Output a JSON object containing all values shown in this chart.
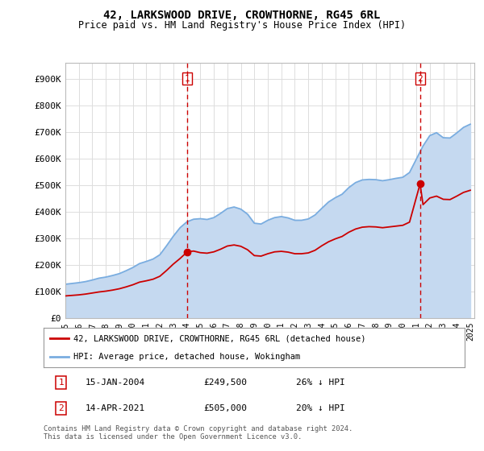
{
  "title": "42, LARKSWOOD DRIVE, CROWTHORNE, RG45 6RL",
  "subtitle": "Price paid vs. HM Land Registry's House Price Index (HPI)",
  "ylabel_ticks": [
    "£0",
    "£100K",
    "£200K",
    "£300K",
    "£400K",
    "£500K",
    "£600K",
    "£700K",
    "£800K",
    "£900K"
  ],
  "ytick_values": [
    0,
    100000,
    200000,
    300000,
    400000,
    500000,
    600000,
    700000,
    800000,
    900000
  ],
  "ylim": [
    0,
    960000
  ],
  "background_color": "#ffffff",
  "plot_bg_color": "#ffffff",
  "grid_color": "#dddddd",
  "sale1_date_num": 2004.04,
  "sale1_price": 249500,
  "sale1_label": "1",
  "sale2_date_num": 2021.28,
  "sale2_price": 505000,
  "sale2_label": "2",
  "legend_label1": "42, LARKSWOOD DRIVE, CROWTHORNE, RG45 6RL (detached house)",
  "legend_label2": "HPI: Average price, detached house, Wokingham",
  "footer": "Contains HM Land Registry data © Crown copyright and database right 2024.\nThis data is licensed under the Open Government Licence v3.0.",
  "line_color_sale": "#cc0000",
  "line_color_hpi": "#7aade0",
  "fill_color_hpi": "#c5d9f0",
  "marker_color_sale": "#cc0000",
  "vline_color": "#cc0000",
  "hpi_data_years": [
    1995,
    1995.5,
    1996,
    1996.5,
    1997,
    1997.5,
    1998,
    1998.5,
    1999,
    1999.5,
    2000,
    2000.5,
    2001,
    2001.5,
    2002,
    2002.5,
    2003,
    2003.5,
    2004,
    2004.5,
    2005,
    2005.5,
    2006,
    2006.5,
    2007,
    2007.5,
    2008,
    2008.5,
    2009,
    2009.5,
    2010,
    2010.5,
    2011,
    2011.5,
    2012,
    2012.5,
    2013,
    2013.5,
    2014,
    2014.5,
    2015,
    2015.5,
    2016,
    2016.5,
    2017,
    2017.5,
    2018,
    2018.5,
    2019,
    2019.5,
    2020,
    2020.5,
    2021,
    2021.5,
    2022,
    2022.5,
    2023,
    2023.5,
    2024,
    2024.5,
    2025
  ],
  "hpi_data_values": [
    127000,
    130000,
    133000,
    137000,
    143000,
    150000,
    154000,
    160000,
    167000,
    178000,
    190000,
    205000,
    213000,
    222000,
    238000,
    272000,
    308000,
    340000,
    362000,
    372000,
    374000,
    371000,
    378000,
    394000,
    412000,
    418000,
    410000,
    391000,
    357000,
    354000,
    368000,
    378000,
    382000,
    377000,
    368000,
    368000,
    373000,
    388000,
    413000,
    437000,
    453000,
    466000,
    491000,
    510000,
    520000,
    522000,
    521000,
    517000,
    521000,
    526000,
    530000,
    548000,
    598000,
    648000,
    687000,
    698000,
    679000,
    678000,
    697000,
    718000,
    730000
  ],
  "sale_data_years": [
    1995,
    1995.5,
    1996,
    1996.5,
    1997,
    1997.5,
    1998,
    1998.5,
    1999,
    1999.5,
    2000,
    2000.5,
    2001,
    2001.5,
    2002,
    2002.5,
    2003,
    2003.5,
    2004.04,
    2004.5,
    2005,
    2005.5,
    2006,
    2006.5,
    2007,
    2007.5,
    2008,
    2008.5,
    2009,
    2009.5,
    2010,
    2010.5,
    2011,
    2011.5,
    2012,
    2012.5,
    2013,
    2013.5,
    2014,
    2014.5,
    2015,
    2015.5,
    2016,
    2016.5,
    2017,
    2017.5,
    2018,
    2018.5,
    2019,
    2019.5,
    2020,
    2020.5,
    2021.28,
    2021.5,
    2022,
    2022.5,
    2023,
    2023.5,
    2024,
    2024.5,
    2025
  ],
  "sale_data_values": [
    83000,
    85000,
    87000,
    90000,
    94000,
    98000,
    101000,
    105000,
    110000,
    117000,
    125000,
    135000,
    140000,
    146000,
    157000,
    179000,
    203000,
    224000,
    249500,
    252000,
    246000,
    244000,
    249000,
    259000,
    271000,
    275000,
    270000,
    257000,
    235000,
    233000,
    242000,
    249000,
    251000,
    248000,
    242000,
    242000,
    245000,
    255000,
    272000,
    287000,
    298000,
    307000,
    323000,
    335000,
    342000,
    344000,
    343000,
    340000,
    343000,
    346000,
    349000,
    361000,
    505000,
    427000,
    452000,
    459000,
    447000,
    446000,
    459000,
    473000,
    481000
  ],
  "xtick_years": [
    "1995",
    "1996",
    "1997",
    "1998",
    "1999",
    "2000",
    "2001",
    "2002",
    "2003",
    "2004",
    "2005",
    "2006",
    "2007",
    "2008",
    "2009",
    "2010",
    "2011",
    "2012",
    "2013",
    "2014",
    "2015",
    "2016",
    "2017",
    "2018",
    "2019",
    "2020",
    "2021",
    "2022",
    "2023",
    "2024",
    "2025"
  ],
  "xtick_values": [
    1995,
    1996,
    1997,
    1998,
    1999,
    2000,
    2001,
    2002,
    2003,
    2004,
    2005,
    2006,
    2007,
    2008,
    2009,
    2010,
    2011,
    2012,
    2013,
    2014,
    2015,
    2016,
    2017,
    2018,
    2019,
    2020,
    2021,
    2022,
    2023,
    2024,
    2025
  ]
}
